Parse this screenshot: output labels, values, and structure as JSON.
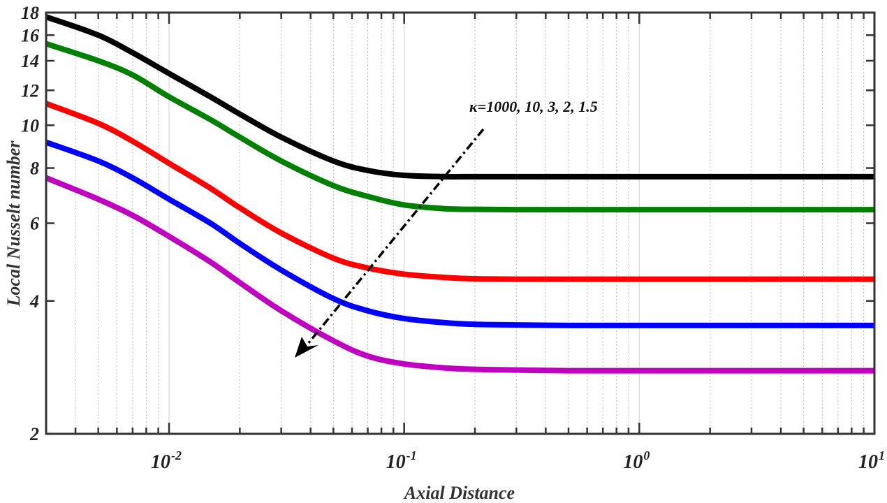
{
  "chart_data": {
    "type": "line",
    "title": "",
    "xlabel": "Axial Distance",
    "ylabel": "Local Nusselt number",
    "xscale": "log",
    "yscale": "log",
    "xlim": [
      0.003,
      10
    ],
    "ylim": [
      2,
      18
    ],
    "x_ticks": [
      {
        "value": 0.01,
        "label_base": "10",
        "label_exp": "-2"
      },
      {
        "value": 0.1,
        "label_base": "10",
        "label_exp": "-1"
      },
      {
        "value": 1,
        "label_base": "10",
        "label_exp": "0"
      },
      {
        "value": 10,
        "label_base": "10",
        "label_exp": "1"
      }
    ],
    "y_ticks": [
      2,
      4,
      6,
      8,
      10,
      12,
      14,
      16,
      18
    ],
    "grid": {
      "x_minor": true,
      "x_major": true,
      "y": false
    },
    "legend": null,
    "annotation": {
      "text": "κ=1000, 10, 3, 2, 1.5",
      "arrow": {
        "from": [
          0.2,
          9.8
        ],
        "to": [
          0.032,
          3.0
        ],
        "style": "dash-dot",
        "meaning": "decreasing κ"
      }
    },
    "x": [
      0.003,
      0.005,
      0.007,
      0.01,
      0.015,
      0.02,
      0.03,
      0.05,
      0.07,
      0.1,
      0.15,
      0.2,
      0.3,
      0.5,
      1,
      2,
      5,
      10
    ],
    "series": [
      {
        "name": "κ=1000",
        "color": "#000000",
        "values": [
          17.6,
          16.0,
          14.6,
          13.1,
          11.6,
          10.6,
          9.4,
          8.3,
          7.9,
          7.7,
          7.65,
          7.65,
          7.65,
          7.65,
          7.65,
          7.65,
          7.65,
          7.65
        ]
      },
      {
        "name": "κ=10",
        "color": "#008000",
        "values": [
          15.3,
          14.0,
          13.0,
          11.6,
          10.3,
          9.4,
          8.3,
          7.3,
          6.9,
          6.6,
          6.47,
          6.45,
          6.44,
          6.44,
          6.44,
          6.44,
          6.44,
          6.44
        ]
      },
      {
        "name": "κ=3",
        "color": "#ff0000",
        "values": [
          11.2,
          10.1,
          9.2,
          8.2,
          7.2,
          6.5,
          5.7,
          5.0,
          4.75,
          4.6,
          4.52,
          4.49,
          4.48,
          4.48,
          4.48,
          4.48,
          4.48,
          4.48
        ]
      },
      {
        "name": "κ=2",
        "color": "#0000ff",
        "values": [
          9.15,
          8.3,
          7.6,
          6.8,
          6.0,
          5.4,
          4.7,
          4.05,
          3.8,
          3.65,
          3.57,
          3.54,
          3.53,
          3.52,
          3.52,
          3.52,
          3.52,
          3.52
        ]
      },
      {
        "name": "κ=1.5",
        "color": "#bf00bf",
        "values": [
          7.6,
          6.8,
          6.25,
          5.6,
          4.9,
          4.4,
          3.8,
          3.25,
          3.0,
          2.88,
          2.82,
          2.8,
          2.79,
          2.78,
          2.78,
          2.78,
          2.78,
          2.78
        ]
      }
    ]
  }
}
